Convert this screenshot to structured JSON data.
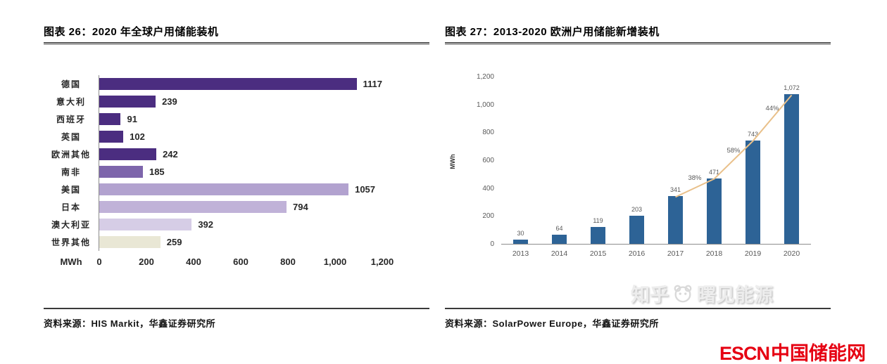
{
  "charts": [
    {
      "title": "图表 26：2020 年全球户用储能装机",
      "source": "资料来源：HIS Markit，华鑫证券研究所"
    },
    {
      "title": "图表 27：2013-2020 欧洲户用储能新增装机",
      "source": "资料来源：SolarPower Europe，华鑫证券研究所"
    }
  ],
  "watermark": {
    "site": "知乎",
    "account": "曙见能源",
    "icon": "zhihu-mascot-icon"
  },
  "logo": {
    "text_en": "ESCN",
    "text_zh": "中国储能网",
    "color": "#e60012"
  },
  "chart_data": [
    {
      "type": "bar",
      "orientation": "horizontal",
      "title": "2020 年全球户用储能装机",
      "categories": [
        "德国",
        "意大利",
        "西班牙",
        "英国",
        "欧洲其他",
        "南非",
        "美国",
        "日本",
        "澳大利亚",
        "世界其他"
      ],
      "values": [
        1117,
        239,
        91,
        102,
        242,
        185,
        1057,
        794,
        392,
        259
      ],
      "value_labels": [
        "1117",
        "239",
        "91",
        "102",
        "242",
        "185",
        "1057",
        "794",
        "392",
        "259"
      ],
      "xlabel": "MWh",
      "xlim": [
        0,
        1200
      ],
      "xticks": [
        "0",
        "200",
        "400",
        "600",
        "800",
        "1,000",
        "1,200"
      ],
      "bar_colors": [
        "#4b2d80",
        "#4b2d80",
        "#4b2d80",
        "#4b2d80",
        "#4b2d80",
        "#7d65ab",
        "#b2a2cf",
        "#c0b2d8",
        "#d6cde6",
        "#e9e7d5"
      ],
      "grid": false,
      "legend": "none"
    },
    {
      "type": "bar",
      "orientation": "vertical",
      "title": "2013-2020 欧洲户用储能新增装机",
      "categories": [
        "2013",
        "2014",
        "2015",
        "2016",
        "2017",
        "2018",
        "2019",
        "2020"
      ],
      "values": [
        30,
        64,
        119,
        203,
        341,
        471,
        743,
        1072
      ],
      "value_labels": [
        "30",
        "64",
        "119",
        "203",
        "341",
        "471",
        "743",
        "1,072"
      ],
      "ylabel": "MWh",
      "ylim": [
        0,
        1200
      ],
      "yticks": [
        "0",
        "200",
        "400",
        "600",
        "800",
        "1,000",
        "1,200"
      ],
      "bar_color": "#2d6396",
      "growth_line": {
        "start_index": 4,
        "labels": [
          "38%",
          "58%",
          "44%"
        ],
        "color": "#e9c08a"
      },
      "grid": false,
      "legend": "none"
    }
  ]
}
